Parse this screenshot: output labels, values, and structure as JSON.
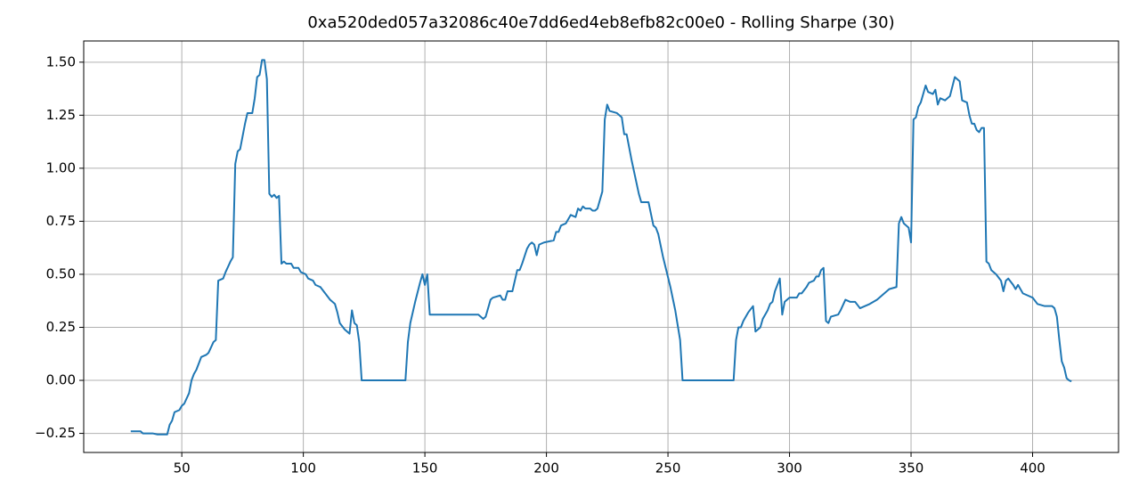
{
  "chart_data": {
    "type": "line",
    "title": "0xa520ded057a32086c40e7dd6ed4eb8efb82c00e0 - Rolling Sharpe (30)",
    "color": "#1f77b4",
    "grid": true,
    "xlim": [
      9.65,
      435.35
    ],
    "ylim": [
      -0.34,
      1.6
    ],
    "xticks": [
      50,
      100,
      150,
      200,
      250,
      300,
      350,
      400
    ],
    "yticks": [
      {
        "value": -0.25,
        "label": "−0.25"
      },
      {
        "value": 0,
        "label": "0.00"
      },
      0.25,
      {
        "value": 0.5,
        "label": "0.50"
      },
      0.75,
      {
        "value": 1,
        "label": "1.00"
      },
      1.25,
      {
        "value": 1.5,
        "label": "1.50"
      }
    ],
    "x": [
      29,
      33,
      34,
      38,
      40,
      44,
      45,
      46,
      47,
      49,
      50,
      51,
      53,
      54,
      55,
      56,
      58,
      60,
      61,
      63,
      64,
      65,
      67,
      68,
      70,
      71,
      72,
      73,
      74,
      75,
      76,
      77,
      79,
      80,
      81,
      82,
      83,
      84,
      85,
      86,
      87,
      88,
      89,
      90,
      91,
      92,
      93,
      95,
      96,
      98,
      99,
      101,
      102,
      104,
      105,
      107,
      109,
      111,
      113,
      114,
      115,
      117,
      119,
      120,
      121,
      122,
      123,
      124,
      142,
      143,
      144,
      146,
      148,
      149,
      150,
      151,
      152,
      172,
      174,
      175,
      177,
      178,
      181,
      182,
      183,
      184,
      186,
      188,
      189,
      190,
      192,
      193,
      194,
      195,
      196,
      197,
      199,
      203,
      204,
      205,
      206,
      208,
      210,
      212,
      213,
      214,
      215,
      216,
      218,
      219,
      220,
      221,
      223,
      224,
      225,
      226,
      229,
      231,
      232,
      233,
      235,
      238,
      239,
      242,
      244,
      245,
      246,
      248,
      251,
      253,
      255,
      256,
      277,
      278,
      279,
      280,
      281,
      283,
      285,
      286,
      287,
      288,
      289,
      290,
      291,
      292,
      293,
      294,
      296,
      297,
      298,
      300,
      303,
      304,
      305,
      307,
      308,
      310,
      311,
      312,
      313,
      314,
      315,
      316,
      317,
      320,
      321,
      323,
      325,
      327,
      329,
      331,
      333,
      336,
      339,
      341,
      344,
      345,
      346,
      347,
      349,
      350,
      351,
      352,
      353,
      354,
      356,
      357,
      359,
      360,
      361,
      362,
      364,
      366,
      368,
      370,
      371,
      373,
      374,
      375,
      376,
      377,
      378,
      379,
      380,
      381,
      382,
      383,
      385,
      387,
      388,
      389,
      390,
      392,
      393,
      394,
      396,
      398,
      400,
      402,
      405,
      408,
      409,
      410,
      411,
      412,
      413,
      414,
      415,
      416
    ],
    "values": [
      -0.24,
      -0.24,
      -0.25,
      -0.25,
      -0.255,
      -0.255,
      -0.21,
      -0.19,
      -0.15,
      -0.14,
      -0.12,
      -0.11,
      -0.06,
      0.0,
      0.03,
      0.05,
      0.11,
      0.12,
      0.13,
      0.18,
      0.19,
      0.47,
      0.48,
      0.51,
      0.56,
      0.58,
      1.02,
      1.08,
      1.09,
      1.15,
      1.21,
      1.26,
      1.26,
      1.33,
      1.43,
      1.44,
      1.51,
      1.51,
      1.42,
      0.88,
      0.865,
      0.875,
      0.86,
      0.87,
      0.55,
      0.56,
      0.55,
      0.55,
      0.53,
      0.53,
      0.51,
      0.5,
      0.48,
      0.47,
      0.45,
      0.44,
      0.41,
      0.38,
      0.36,
      0.32,
      0.27,
      0.24,
      0.22,
      0.33,
      0.27,
      0.26,
      0.18,
      0.0,
      0.0,
      0.18,
      0.27,
      0.37,
      0.46,
      0.5,
      0.45,
      0.5,
      0.31,
      0.31,
      0.29,
      0.3,
      0.38,
      0.39,
      0.4,
      0.38,
      0.38,
      0.42,
      0.42,
      0.52,
      0.52,
      0.55,
      0.62,
      0.64,
      0.65,
      0.64,
      0.59,
      0.64,
      0.65,
      0.66,
      0.7,
      0.7,
      0.73,
      0.74,
      0.78,
      0.77,
      0.81,
      0.8,
      0.82,
      0.81,
      0.81,
      0.8,
      0.8,
      0.81,
      0.89,
      1.23,
      1.3,
      1.27,
      1.26,
      1.24,
      1.16,
      1.16,
      1.04,
      0.88,
      0.84,
      0.84,
      0.73,
      0.72,
      0.69,
      0.58,
      0.44,
      0.33,
      0.19,
      0.0,
      0.0,
      0.19,
      0.25,
      0.25,
      0.28,
      0.32,
      0.35,
      0.23,
      0.24,
      0.25,
      0.29,
      0.31,
      0.33,
      0.36,
      0.37,
      0.42,
      0.48,
      0.31,
      0.37,
      0.39,
      0.39,
      0.41,
      0.41,
      0.44,
      0.46,
      0.47,
      0.49,
      0.49,
      0.52,
      0.53,
      0.28,
      0.27,
      0.3,
      0.31,
      0.33,
      0.38,
      0.37,
      0.37,
      0.34,
      0.35,
      0.36,
      0.38,
      0.41,
      0.43,
      0.44,
      0.74,
      0.77,
      0.74,
      0.72,
      0.65,
      1.23,
      1.24,
      1.29,
      1.31,
      1.39,
      1.36,
      1.35,
      1.37,
      1.3,
      1.33,
      1.32,
      1.34,
      1.43,
      1.41,
      1.32,
      1.31,
      1.25,
      1.21,
      1.21,
      1.18,
      1.17,
      1.19,
      1.19,
      0.56,
      0.55,
      0.52,
      0.5,
      0.47,
      0.42,
      0.47,
      0.48,
      0.45,
      0.43,
      0.45,
      0.41,
      0.4,
      0.39,
      0.36,
      0.35,
      0.35,
      0.34,
      0.3,
      0.19,
      0.09,
      0.06,
      0.01,
      0.0,
      -0.005
    ]
  }
}
